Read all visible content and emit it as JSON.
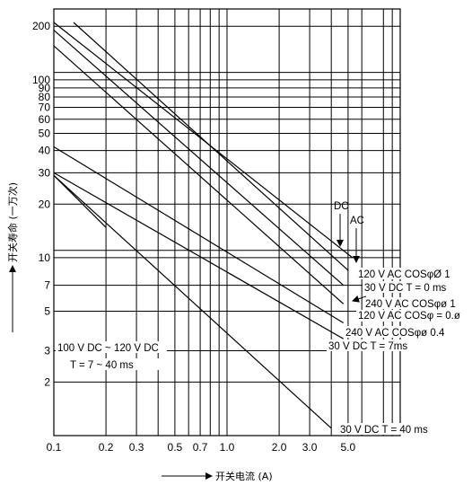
{
  "chart_data": {
    "type": "line",
    "title": "",
    "xlabel": "开关电流 (A)",
    "ylabel": "开关寿命 (一万次)",
    "xscale": "log",
    "yscale": "log",
    "xlim": [
      0.1,
      10
    ],
    "ylim": [
      1,
      250
    ],
    "grid": true,
    "x_ticks": [
      "0.1",
      "0.2",
      "0.3",
      "0.5",
      "0.7",
      "1.0",
      "2.0",
      "3.0",
      "5.0"
    ],
    "x_tick_values": [
      0.1,
      0.2,
      0.3,
      0.5,
      0.7,
      1.0,
      2.0,
      3.0,
      5.0
    ],
    "y_ticks": [
      "2",
      "3",
      "5",
      "7",
      "10",
      "20",
      "30",
      "40",
      "50",
      "60",
      "70",
      "80",
      "90",
      "100",
      "200"
    ],
    "y_tick_values": [
      2,
      3,
      5,
      7,
      10,
      20,
      30,
      40,
      50,
      60,
      70,
      80,
      90,
      100,
      200
    ],
    "series": [
      {
        "name": "120 V AC COSØ 1",
        "x": [
          0.1,
          5.3
        ],
        "y": [
          210,
          10
        ]
      },
      {
        "name": "30 V DC T = 0 ms",
        "x": [
          0.13,
          5.0
        ],
        "y": [
          210,
          8.5
        ]
      },
      {
        "name": "240 V AC COSφØ 1",
        "x": [
          0.1,
          4.7
        ],
        "y": [
          190,
          7
        ]
      },
      {
        "name": "120 V AC COSφ = 0.Ø",
        "x": [
          0.1,
          4.7
        ],
        "y": [
          155,
          5.5
        ]
      },
      {
        "name": "240 V AC COSφØ 0.4",
        "x": [
          0.1,
          4.7
        ],
        "y": [
          42,
          4.3
        ]
      },
      {
        "name": "30 V DC T = 7 ms",
        "x": [
          0.1,
          4.7
        ],
        "y": [
          30,
          3.5
        ]
      },
      {
        "name": "100 V DC ~ 120 V DC T = 7 ~ 40 ms",
        "x": [
          0.1,
          0.2
        ],
        "y": [
          29,
          14.8
        ]
      },
      {
        "name": "30 V DC T = 40 ms",
        "x": [
          0.1,
          4.0
        ],
        "y": [
          29,
          1.1
        ]
      }
    ],
    "annotations": {
      "dc": "DC",
      "ac": "AC",
      "label_120ac_1": "120 V AC COSφØ 1",
      "label_30dc_0": "30 V DC T = 0 ms",
      "label_240ac_1": "240 V AC COSφø 1",
      "label_120ac_04": "120 V AC COSφ = 0.ø",
      "label_240ac_04": "240 V AC COSφø 0.4",
      "label_30dc_7": "30 V DC T = 7ms",
      "label_100dc_line1": "100 V DC ~ 120 V DC",
      "label_100dc_line2": "T = 7 ~ 40 ms",
      "label_30dc_40": "30 V DC T = 40 ms"
    }
  }
}
